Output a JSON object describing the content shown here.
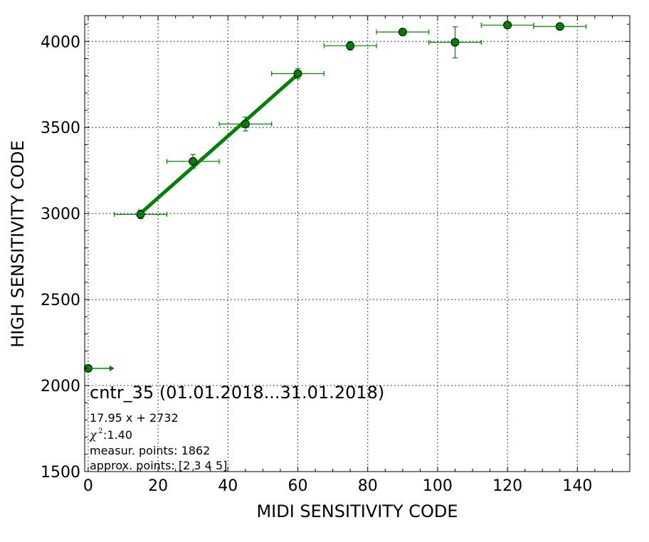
{
  "chart_data": {
    "type": "scatter",
    "xlabel": "MIDI SENSITIVITY CODE",
    "ylabel": "HIGH SENSITIVITY CODE",
    "xlim": [
      -1,
      155
    ],
    "ylim": [
      1500,
      4150
    ],
    "xticks": [
      0,
      20,
      40,
      60,
      80,
      100,
      120,
      140
    ],
    "yticks": [
      1500,
      2000,
      2500,
      3000,
      3500,
      4000
    ],
    "grid": true,
    "colors": {
      "series": "#008000",
      "marker_edge": "#000000"
    },
    "points": [
      {
        "x": 0,
        "y": 2100,
        "xerr": 0,
        "yerr": 0,
        "x_arrow": 7.5
      },
      {
        "x": 15,
        "y": 2995,
        "xerr": 7.5,
        "yerr": 25
      },
      {
        "x": 30,
        "y": 3303,
        "xerr": 7.5,
        "yerr": 40
      },
      {
        "x": 45,
        "y": 3520,
        "xerr": 7.5,
        "yerr": 40
      },
      {
        "x": 60,
        "y": 3813,
        "xerr": 7.5,
        "yerr": 30
      },
      {
        "x": 75,
        "y": 3975,
        "xerr": 7.5,
        "yerr": 25
      },
      {
        "x": 90,
        "y": 4055,
        "xerr": 7.5,
        "yerr": 0
      },
      {
        "x": 105,
        "y": 3995,
        "xerr": 7.5,
        "yerr": 90
      },
      {
        "x": 120,
        "y": 4095,
        "xerr": 7.5,
        "yerr": 0
      },
      {
        "x": 135,
        "y": 4087,
        "xerr": 7.5,
        "yerr": 0
      }
    ],
    "fit_line": {
      "slope": 17.95,
      "intercept": 2732,
      "x_start": 15,
      "x_end": 60
    },
    "annotations": {
      "title": "cntr_35 (01.01.2018...31.01.2018)",
      "equation": "17.95 x + 2732",
      "chi_symbol": "χ",
      "chi_sup": "2",
      "chi_value": " :1.40",
      "measur_points": "measur. points: 1862",
      "approx_points": "approx. points: [2 3 4 5]"
    }
  }
}
